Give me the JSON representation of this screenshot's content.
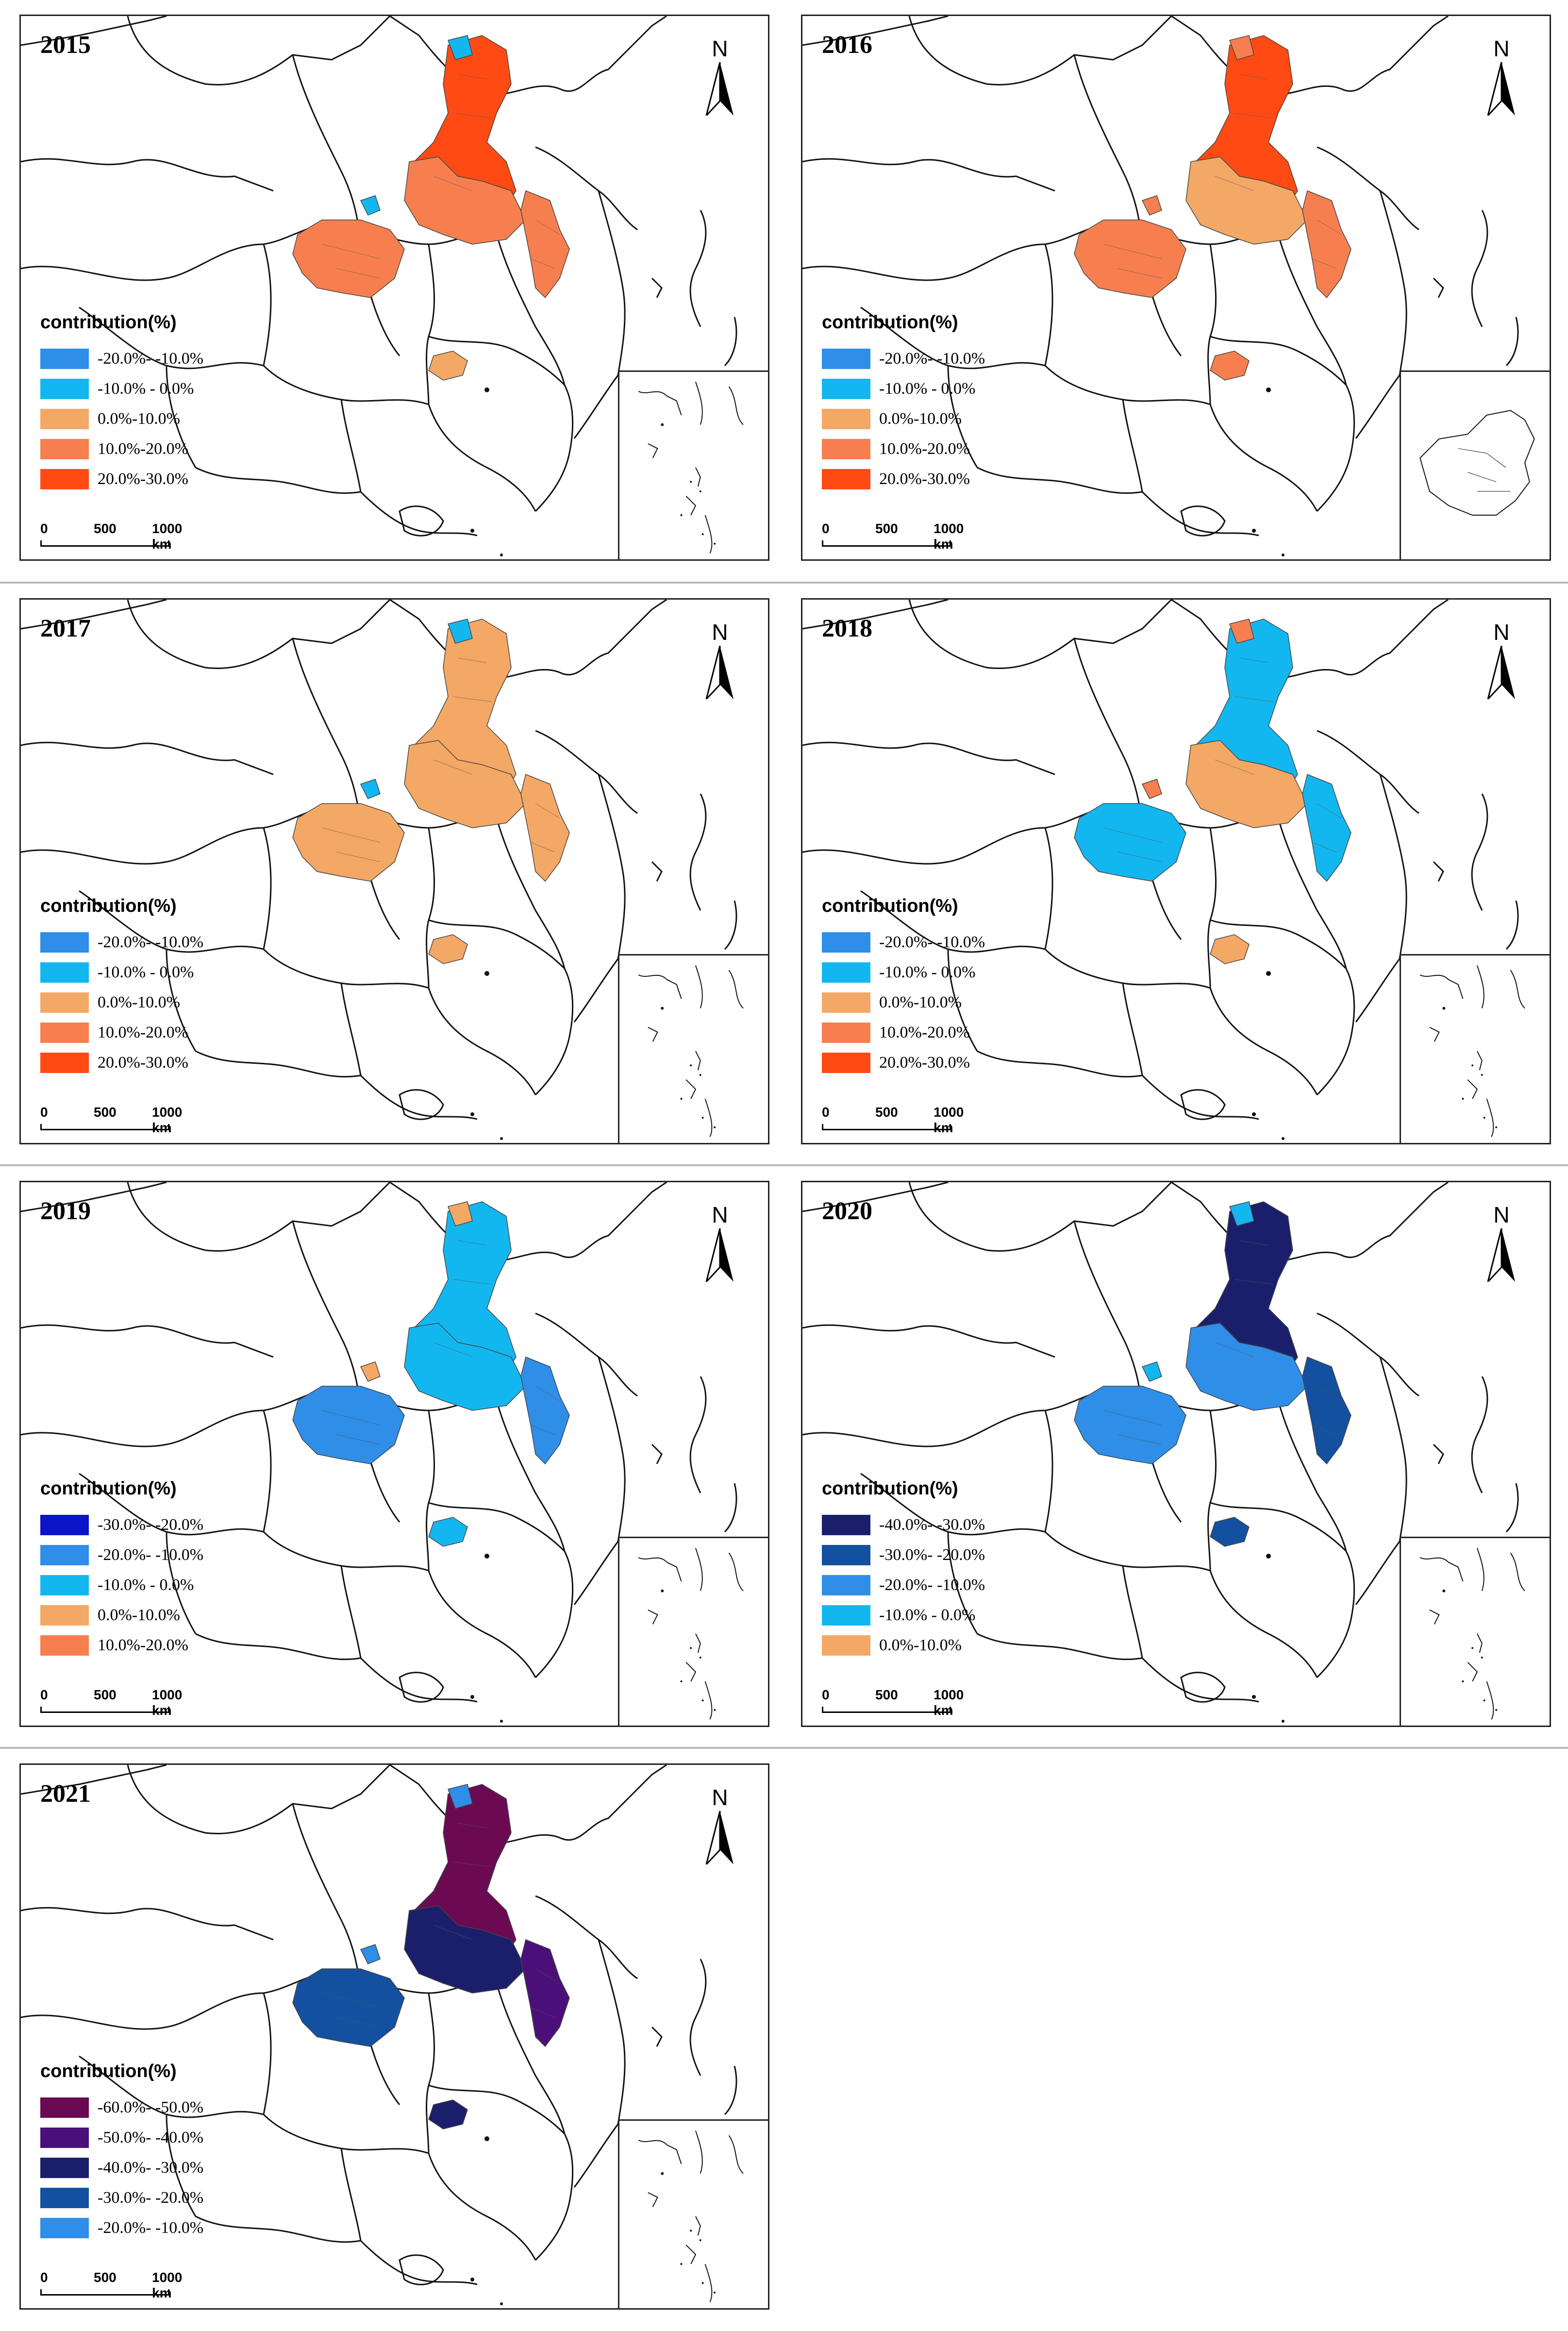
{
  "figure": {
    "legend_title": "contribution(%)",
    "north_label": "N",
    "scale_labels": [
      "0",
      "500",
      "1000 km"
    ],
    "colors": {
      "c_n60_50": "#6b0a52",
      "c_n50_40": "#4b0f7a",
      "c_n40_30": "#1b1f6b",
      "c_n30_20": "#1450a0",
      "c_n20_10": "#2f8ee8",
      "c_n10_0": "#13b7f0",
      "c_0_10": "#f4a865",
      "c_10_20": "#f77f4f",
      "c_20_30": "#ff4a14",
      "c_deep_blue": "#0a14c8"
    }
  },
  "panels": [
    {
      "year": "2015",
      "legend": [
        {
          "label": "-20.0%- -10.0%",
          "color": "#2f8ee8"
        },
        {
          "label": "-10.0% - 0.0%",
          "color": "#13b7f0"
        },
        {
          "label": "0.0%-10.0%",
          "color": "#f4a865"
        },
        {
          "label": "10.0%-20.0%",
          "color": "#f77f4f"
        },
        {
          "label": "20.0%-30.0%",
          "color": "#ff4a14"
        }
      ],
      "region_colors": {
        "north": "#ff4a14",
        "central": "#f77f4f",
        "west": "#f77f4f",
        "east": "#f77f4f",
        "south": "#f4a865",
        "spot": "#13b7f0"
      }
    },
    {
      "year": "2016",
      "legend": [
        {
          "label": "-20.0%- -10.0%",
          "color": "#2f8ee8"
        },
        {
          "label": "-10.0% - 0.0%",
          "color": "#13b7f0"
        },
        {
          "label": "0.0%-10.0%",
          "color": "#f4a865"
        },
        {
          "label": "10.0%-20.0%",
          "color": "#f77f4f"
        },
        {
          "label": "20.0%-30.0%",
          "color": "#ff4a14"
        }
      ],
      "region_colors": {
        "north": "#ff4a14",
        "central": "#f4a865",
        "west": "#f77f4f",
        "east": "#f77f4f",
        "south": "#f77f4f",
        "spot": "#f77f4f"
      }
    },
    {
      "year": "2017",
      "legend": [
        {
          "label": "-20.0%- -10.0%",
          "color": "#2f8ee8"
        },
        {
          "label": "-10.0% - 0.0%",
          "color": "#13b7f0"
        },
        {
          "label": "0.0%-10.0%",
          "color": "#f4a865"
        },
        {
          "label": "10.0%-20.0%",
          "color": "#f77f4f"
        },
        {
          "label": "20.0%-30.0%",
          "color": "#ff4a14"
        }
      ],
      "region_colors": {
        "north": "#f4a865",
        "central": "#f4a865",
        "west": "#f4a865",
        "east": "#f4a865",
        "south": "#f4a865",
        "spot": "#13b7f0"
      }
    },
    {
      "year": "2018",
      "legend": [
        {
          "label": "-20.0%- -10.0%",
          "color": "#2f8ee8"
        },
        {
          "label": "-10.0% - 0.0%",
          "color": "#13b7f0"
        },
        {
          "label": "0.0%-10.0%",
          "color": "#f4a865"
        },
        {
          "label": "10.0%-20.0%",
          "color": "#f77f4f"
        },
        {
          "label": "20.0%-30.0%",
          "color": "#ff4a14"
        }
      ],
      "region_colors": {
        "north": "#13b7f0",
        "central": "#f4a865",
        "west": "#13b7f0",
        "east": "#13b7f0",
        "south": "#f4a865",
        "spot": "#f77f4f"
      }
    },
    {
      "year": "2019",
      "legend": [
        {
          "label": "-30.0%- -20.0%",
          "color": "#0a14c8"
        },
        {
          "label": "-20.0%- -10.0%",
          "color": "#2f8ee8"
        },
        {
          "label": "-10.0% - 0.0%",
          "color": "#13b7f0"
        },
        {
          "label": "0.0%-10.0%",
          "color": "#f4a865"
        },
        {
          "label": "10.0%-20.0%",
          "color": "#f77f4f"
        }
      ],
      "region_colors": {
        "north": "#13b7f0",
        "central": "#13b7f0",
        "west": "#2f8ee8",
        "east": "#2f8ee8",
        "south": "#13b7f0",
        "spot": "#f4a865"
      }
    },
    {
      "year": "2020",
      "legend": [
        {
          "label": "-40.0%- -30.0%",
          "color": "#1b1f6b"
        },
        {
          "label": "-30.0%- -20.0%",
          "color": "#1450a0"
        },
        {
          "label": "-20.0%- -10.0%",
          "color": "#2f8ee8"
        },
        {
          "label": "-10.0% - 0.0%",
          "color": "#13b7f0"
        },
        {
          "label": "0.0%-10.0%",
          "color": "#f4a865"
        }
      ],
      "region_colors": {
        "north": "#1b1f6b",
        "central": "#2f8ee8",
        "west": "#2f8ee8",
        "east": "#1450a0",
        "south": "#1450a0",
        "spot": "#13b7f0"
      }
    },
    {
      "year": "2021",
      "legend": [
        {
          "label": "-60.0%- -50.0%",
          "color": "#6b0a52"
        },
        {
          "label": "-50.0%- -40.0%",
          "color": "#4b0f7a"
        },
        {
          "label": "-40.0%- -30.0%",
          "color": "#1b1f6b"
        },
        {
          "label": "-30.0%- -20.0%",
          "color": "#1450a0"
        },
        {
          "label": "-20.0%- -10.0%",
          "color": "#2f8ee8"
        }
      ],
      "region_colors": {
        "north": "#6b0a52",
        "central": "#1b1f6b",
        "west": "#1450a0",
        "east": "#4b0f7a",
        "south": "#1b1f6b",
        "spot": "#2f8ee8"
      }
    }
  ]
}
